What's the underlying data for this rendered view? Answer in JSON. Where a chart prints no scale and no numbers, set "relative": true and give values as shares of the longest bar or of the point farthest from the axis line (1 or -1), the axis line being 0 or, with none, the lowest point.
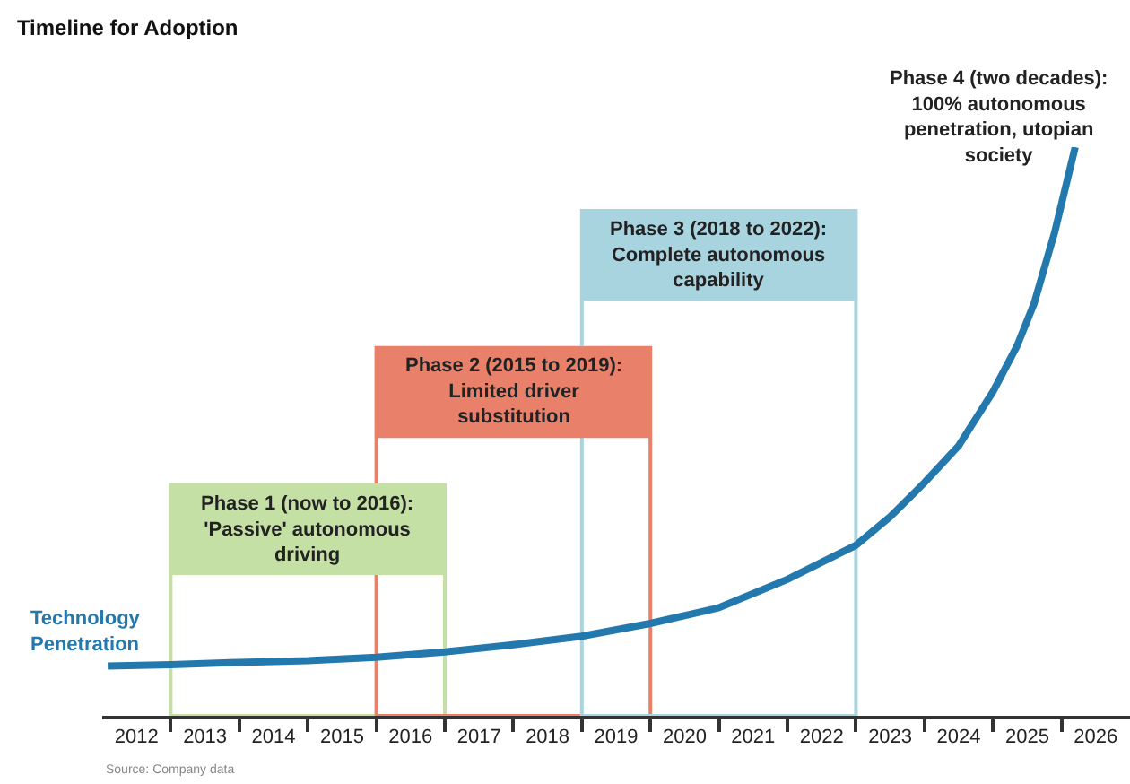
{
  "chart_data": {
    "type": "line",
    "title": "Timeline for Adoption",
    "relative": true,
    "x": [
      2012.08,
      2013.0,
      2014.0,
      2015.0,
      2016.0,
      2017.0,
      2018.0,
      2019.0,
      2020.0,
      2021.0,
      2022.0,
      2023.0,
      2023.5,
      2024.0,
      2024.5,
      2025.0,
      2025.35,
      2025.6,
      2025.9,
      2026.2
    ],
    "series": [
      {
        "name": "Technology\nPenetration",
        "color": "#2379ad",
        "values": [
          0.0875,
          0.09,
          0.094,
          0.097,
          0.103,
          0.1125,
          0.125,
          0.14,
          0.1625,
          0.19,
          0.24,
          0.3,
          0.35,
          0.41,
          0.475,
          0.57,
          0.65,
          0.725,
          0.85,
          1.0
        ]
      }
    ],
    "xlim": [
      2012,
      2027
    ],
    "xticks": [
      {
        "value": 2012.5,
        "label": "2012"
      },
      {
        "value": 2013,
        "label": null
      },
      {
        "value": 2013.5,
        "label": "2013"
      },
      {
        "value": 2014,
        "label": null
      },
      {
        "value": 2014.5,
        "label": "2014"
      },
      {
        "value": 2015,
        "label": null
      },
      {
        "value": 2015.5,
        "label": "2015"
      },
      {
        "value": 2016,
        "label": null
      },
      {
        "value": 2016.5,
        "label": "2016"
      },
      {
        "value": 2017,
        "label": null
      },
      {
        "value": 2017.5,
        "label": "2017"
      },
      {
        "value": 2018,
        "label": null
      },
      {
        "value": 2018.5,
        "label": "2018"
      },
      {
        "value": 2019,
        "label": null
      },
      {
        "value": 2019.5,
        "label": "2019"
      },
      {
        "value": 2020,
        "label": null
      },
      {
        "value": 2020.5,
        "label": "2020"
      },
      {
        "value": 2021,
        "label": null
      },
      {
        "value": 2021.5,
        "label": "2021"
      },
      {
        "value": 2022,
        "label": null
      },
      {
        "value": 2022.5,
        "label": "2022"
      },
      {
        "value": 2023,
        "label": null
      },
      {
        "value": 2023.5,
        "label": "2023"
      },
      {
        "value": 2024,
        "label": null
      },
      {
        "value": 2024.5,
        "label": "2024"
      },
      {
        "value": 2025,
        "label": null
      },
      {
        "value": 2025.5,
        "label": "2025"
      },
      {
        "value": 2026,
        "label": null
      },
      {
        "value": 2026.5,
        "label": "2026"
      }
    ],
    "bands": [
      {
        "axis": "x",
        "from": 2013,
        "to": 2017,
        "label": "Phase 1 (now to 2016):\n'Passive' autonomous\ndriving",
        "color": "#c5e0a5"
      },
      {
        "axis": "x",
        "from": 2016,
        "to": 2020,
        "label": "Phase 2 (2015 to 2019):\nLimited driver\nsubstitution",
        "color": "#e8806a"
      },
      {
        "axis": "x",
        "from": 2019,
        "to": 2023,
        "label": "Phase 3 (2018 to 2022):\nComplete autonomous\ncapability",
        "color": "#a8d4e0"
      }
    ],
    "annotations": [
      "Phase 4 (two decades):\n100% autonomous\npenetration, utopian\nsociety",
      "Source: Company data"
    ],
    "grid": false,
    "legend": false,
    "marker": "none",
    "line_style": "solid"
  }
}
